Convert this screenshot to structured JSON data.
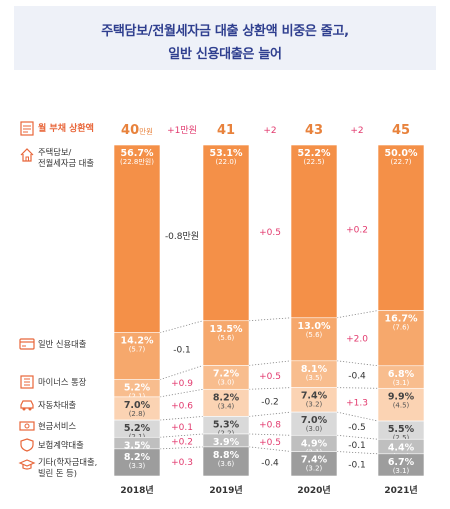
{
  "title": {
    "line1": "주택담보/전월세자금 대출 상환액 비중은 줄고,",
    "line2": "일반 신용대출은 늘어"
  },
  "colors": {
    "housing": "#f49048",
    "credit": "#f6a86c",
    "minus": "#f8bd8e",
    "auto": "#fbd3b3",
    "cash": "#d9d9d9",
    "insurance": "#bfbfbf",
    "other": "#9d9d9d",
    "accent": "#e8823c",
    "diff": "#e23a6e",
    "title": "#2f3f8f"
  },
  "chart_data": {
    "type": "bar",
    "stacked": true,
    "normalized": true,
    "categories": [
      "2018년",
      "2019년",
      "2020년",
      "2021년"
    ],
    "monthly_payment": {
      "label": "월 부채 상환액",
      "values": [
        "40",
        "41",
        "43",
        "45"
      ],
      "unit": "만원",
      "changes": [
        "+1만원",
        "+2",
        "+2"
      ]
    },
    "series": [
      {
        "name": "주택담보/전월세자금 대출",
        "name_lines": [
          "주택담보/",
          "전월세자금 대출"
        ],
        "icon": "house-icon",
        "values": [
          56.7,
          53.1,
          52.2,
          50.0
        ],
        "pct_labels": [
          "56.7%",
          "53.1%",
          "52.2%",
          "50.0%"
        ],
        "amounts": [
          "(22.8만원)",
          "(22.0)",
          "(22.5)",
          "(22.7)"
        ],
        "changes": [
          "-0.8만원",
          "+0.5",
          "+0.2"
        ]
      },
      {
        "name": "일반 신용대출",
        "name_lines": [
          "일반 신용대출"
        ],
        "icon": "credit-icon",
        "values": [
          14.2,
          13.5,
          13.0,
          16.7
        ],
        "pct_labels": [
          "14.2%",
          "13.5%",
          "13.0%",
          "16.7%"
        ],
        "amounts": [
          "(5.7)",
          "(5.6)",
          "(5.6)",
          "(7.6)"
        ],
        "changes": [
          "-0.1",
          "",
          "+2.0"
        ]
      },
      {
        "name": "마이너스 통장",
        "name_lines": [
          "마이너스 통장"
        ],
        "icon": "bankbook-icon",
        "values": [
          5.2,
          7.2,
          8.1,
          6.8
        ],
        "pct_labels": [
          "5.2%",
          "7.2%",
          "8.1%",
          "6.8%"
        ],
        "amounts": [
          "(2.1)",
          "(3.0)",
          "(3.5)",
          "(3.1)"
        ],
        "changes": [
          "+0.9",
          "+0.5",
          "-0.4"
        ]
      },
      {
        "name": "자동차대출",
        "name_lines": [
          "자동차대출"
        ],
        "icon": "car-icon",
        "values": [
          7.0,
          8.2,
          7.4,
          9.9
        ],
        "pct_labels": [
          "7.0%",
          "8.2%",
          "7.4%",
          "9.9%"
        ],
        "amounts": [
          "(2.8)",
          "(3.4)",
          "(3.2)",
          "(4.5)"
        ],
        "changes": [
          "+0.6",
          "-0.2",
          "+1.3"
        ]
      },
      {
        "name": "현금서비스",
        "name_lines": [
          "현금서비스"
        ],
        "icon": "cash-icon",
        "values": [
          5.2,
          5.3,
          7.0,
          5.5
        ],
        "pct_labels": [
          "5.2%",
          "5.3%",
          "7.0%",
          "5.5%"
        ],
        "amounts": [
          "(2.1)",
          "(2.2)",
          "(3.0)",
          "(2.5)"
        ],
        "changes": [
          "+0.1",
          "+0.8",
          "-0.5"
        ]
      },
      {
        "name": "보험계약대출",
        "name_lines": [
          "보험계약대출"
        ],
        "icon": "insurance-icon",
        "values": [
          3.5,
          3.9,
          4.9,
          4.4
        ],
        "pct_labels": [
          "3.5%",
          "3.9%",
          "4.9%",
          "4.4%"
        ],
        "amounts": [
          "(1.4)",
          "(1.6)",
          "(2.1)",
          "(2.0)"
        ],
        "changes": [
          "+0.2",
          "+0.5",
          "-0.1"
        ]
      },
      {
        "name": "기타(학자금대출, 빌린 돈 등)",
        "name_lines": [
          "기타(학자금대출,",
          "빌린 돈 등)"
        ],
        "icon": "scholar-icon",
        "values": [
          8.2,
          8.8,
          7.4,
          6.7
        ],
        "pct_labels": [
          "8.2%",
          "8.8%",
          "7.4%",
          "6.7%"
        ],
        "amounts": [
          "(3.3)",
          "(3.6)",
          "(3.2)",
          "(3.1)"
        ],
        "changes": [
          "+0.3",
          "-0.4",
          "-0.1"
        ]
      }
    ]
  }
}
